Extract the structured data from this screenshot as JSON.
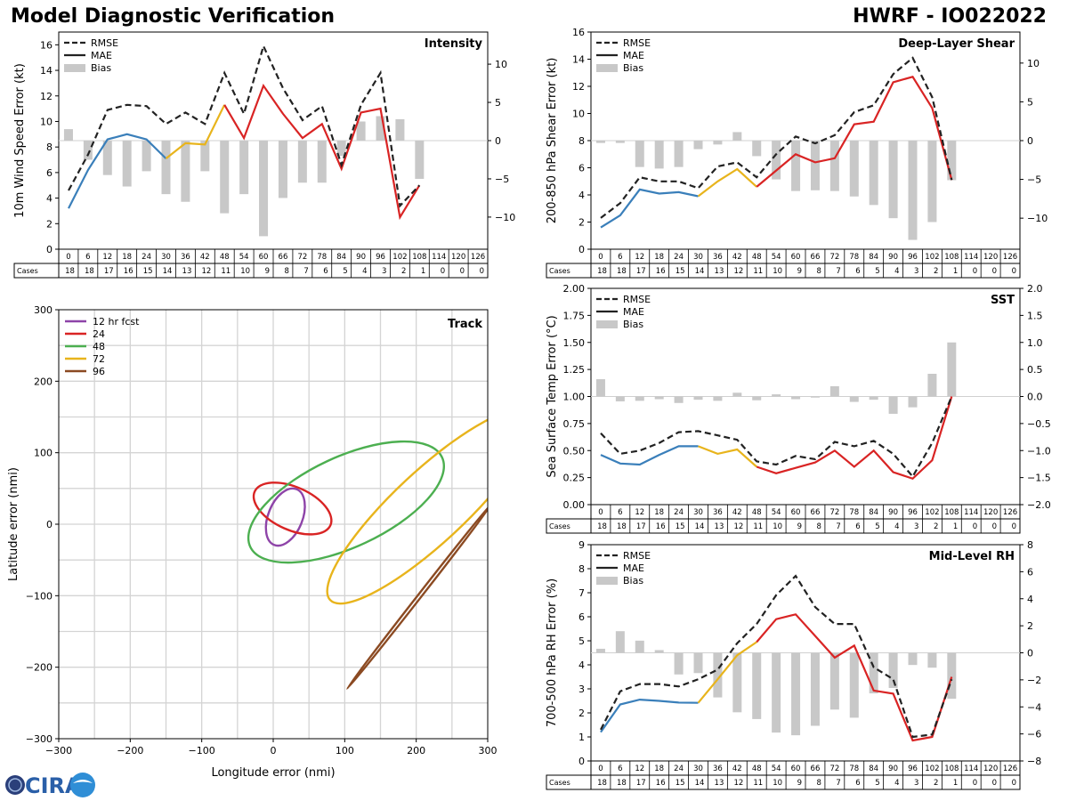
{
  "header": {
    "title": "Model Diagnostic Verification",
    "model_storm": "HWRF - IO022022"
  },
  "logo": {
    "text": "CIRA"
  },
  "colors": {
    "rmse": "#222222",
    "early": "#3a7fba",
    "mid": "#e8b41c",
    "late": "#d92424",
    "bias": "#c8c8c8"
  },
  "table": {
    "hours": [
      "0",
      "6",
      "12",
      "18",
      "24",
      "30",
      "36",
      "42",
      "48",
      "54",
      "60",
      "66",
      "72",
      "78",
      "84",
      "90",
      "96",
      "102",
      "108",
      "114",
      "120",
      "126"
    ],
    "cases_label": "Cases",
    "cases": [
      "18",
      "18",
      "17",
      "16",
      "15",
      "14",
      "13",
      "12",
      "11",
      "10",
      "9",
      "8",
      "7",
      "6",
      "5",
      "4",
      "3",
      "2",
      "1",
      "0",
      "0",
      "0"
    ]
  },
  "chart_data": [
    {
      "id": "intensity",
      "type": "line",
      "title": "Intensity",
      "ylabel": "10m Wind Speed Error (kt)",
      "ylim": [
        0,
        17
      ],
      "yticks": [
        0,
        2,
        4,
        6,
        8,
        10,
        12,
        14,
        16
      ],
      "y2lim": [
        -14.2,
        14.2
      ],
      "y2ticks": [
        -10,
        -5,
        0,
        5,
        10
      ],
      "legend": [
        "RMSE",
        "MAE",
        "Bias"
      ],
      "rmse": [
        4.6,
        7.4,
        10.9,
        11.3,
        11.2,
        9.8,
        10.7,
        9.8,
        13.8,
        10.6,
        15.9,
        12.6,
        10.1,
        11.2,
        6.6,
        11.3,
        13.8,
        3.4,
        5.0
      ],
      "mae": [
        3.2,
        6.2,
        8.6,
        9.0,
        8.6,
        7.1,
        8.3,
        8.2,
        11.3,
        8.7,
        12.8,
        10.6,
        8.7,
        9.8,
        6.3,
        10.7,
        11.0,
        2.5,
        5.0
      ],
      "bias": [
        1.5,
        -2.5,
        -4.5,
        -6.0,
        -4.0,
        -7.0,
        -8.0,
        -4.0,
        -9.5,
        -7.0,
        -12.5,
        -7.5,
        -5.5,
        -5.5,
        -2.0,
        2.5,
        3.2,
        2.8,
        -5.0
      ]
    },
    {
      "id": "shear",
      "type": "line",
      "title": "Deep-Layer Shear",
      "ylabel": "200-850 hPa Shear Error (kt)",
      "ylim": [
        0,
        16
      ],
      "yticks": [
        0,
        2,
        4,
        6,
        8,
        10,
        12,
        14,
        16
      ],
      "y2lim": [
        -14,
        14
      ],
      "y2ticks": [
        -10,
        -5,
        0,
        5,
        10
      ],
      "legend": [
        "RMSE",
        "MAE",
        "Bias"
      ],
      "rmse": [
        2.3,
        3.4,
        5.3,
        5.0,
        5.0,
        4.5,
        6.1,
        6.4,
        5.3,
        7.0,
        8.3,
        7.8,
        8.4,
        10.1,
        10.6,
        12.9,
        14.1,
        11.2,
        5.1
      ],
      "mae": [
        1.6,
        2.5,
        4.4,
        4.1,
        4.2,
        3.9,
        5.0,
        5.9,
        4.6,
        5.8,
        7.0,
        6.4,
        6.7,
        9.2,
        9.4,
        12.3,
        12.7,
        10.4,
        5.1
      ],
      "bias": [
        -0.3,
        -0.3,
        -3.4,
        -3.6,
        -3.4,
        -1.1,
        -0.5,
        1.1,
        -2.0,
        -5.0,
        -6.5,
        -6.4,
        -6.5,
        -7.2,
        -8.3,
        -10.0,
        -12.8,
        -10.5,
        -5.1
      ]
    },
    {
      "id": "sst",
      "type": "line",
      "title": "SST",
      "ylabel": "Sea Surface Temp Error (°C)",
      "ylim": [
        0,
        2
      ],
      "yticks": [
        "0.00",
        "0.25",
        "0.50",
        "0.75",
        "1.00",
        "1.25",
        "1.50",
        "1.75",
        "2.00"
      ],
      "y2lim": [
        -2,
        2
      ],
      "y2ticks": [
        "−2.0",
        "−1.5",
        "−1.0",
        "−0.5",
        "0.0",
        "0.5",
        "1.0",
        "1.5",
        "2.0"
      ],
      "legend": [
        "RMSE",
        "MAE",
        "Bias"
      ],
      "rmse": [
        0.66,
        0.47,
        0.5,
        0.57,
        0.67,
        0.68,
        0.64,
        0.6,
        0.4,
        0.37,
        0.45,
        0.42,
        0.58,
        0.54,
        0.59,
        0.47,
        0.26,
        0.57,
        1.0
      ],
      "mae": [
        0.46,
        0.38,
        0.37,
        0.46,
        0.54,
        0.54,
        0.47,
        0.51,
        0.35,
        0.29,
        0.34,
        0.39,
        0.5,
        0.35,
        0.5,
        0.3,
        0.24,
        0.41,
        1.0
      ],
      "bias": [
        0.32,
        -0.09,
        -0.08,
        -0.05,
        -0.12,
        -0.06,
        -0.08,
        0.07,
        -0.07,
        0.04,
        -0.05,
        -0.02,
        0.19,
        -0.1,
        -0.06,
        -0.32,
        -0.2,
        0.42,
        1.0
      ]
    },
    {
      "id": "rh",
      "type": "line",
      "title": "Mid-Level RH",
      "ylabel": "700-500 hPa RH Error (%)",
      "ylim": [
        0,
        9
      ],
      "yticks": [
        0,
        1,
        2,
        3,
        4,
        5,
        6,
        7,
        8,
        9
      ],
      "y2lim": [
        -8,
        8
      ],
      "y2ticks": [
        -8,
        -6,
        -4,
        -2,
        0,
        2,
        4,
        6,
        8
      ],
      "legend": [
        "RMSE",
        "MAE",
        "Bias"
      ],
      "rmse": [
        1.3,
        2.9,
        3.2,
        3.2,
        3.1,
        3.4,
        3.8,
        4.9,
        5.7,
        6.9,
        7.7,
        6.4,
        5.7,
        5.7,
        3.9,
        3.4,
        1.0,
        1.1,
        3.4
      ],
      "mae": [
        1.2,
        2.35,
        2.55,
        2.5,
        2.43,
        2.42,
        3.4,
        4.4,
        4.95,
        5.9,
        6.1,
        5.2,
        4.3,
        4.8,
        2.93,
        2.8,
        0.85,
        1.0,
        3.5
      ],
      "bias": [
        0.3,
        1.6,
        0.9,
        0.2,
        -1.6,
        -1.5,
        -3.3,
        -4.4,
        -4.9,
        -5.9,
        -6.1,
        -5.4,
        -4.2,
        -4.8,
        -3.0,
        -2.6,
        -0.9,
        -1.1,
        -3.4
      ]
    },
    {
      "id": "track",
      "type": "ellipse",
      "title": "Track",
      "xlabel": "Longitude error (nmi)",
      "ylabel": "Latitude error (nmi)",
      "xlim": [
        -300,
        300
      ],
      "ylim": [
        -300,
        300
      ],
      "ticks": [
        -300,
        -200,
        -100,
        0,
        100,
        200,
        300
      ],
      "legend": [
        {
          "label": "12 hr fcst",
          "color": "#8e44a8"
        },
        {
          "label": "24",
          "color": "#d92424"
        },
        {
          "label": "48",
          "color": "#4caf50"
        },
        {
          "label": "72",
          "color": "#e8b41c"
        },
        {
          "label": "96",
          "color": "#8b4a22"
        }
      ],
      "ellipses": [
        {
          "label": "12 hr fcst",
          "color": "#8e44a8",
          "cx": 17,
          "cy": 10,
          "a": 42,
          "b": 24,
          "angle_deg": 68
        },
        {
          "label": "24",
          "color": "#d92424",
          "cx": 27,
          "cy": 22,
          "a": 58,
          "b": 30,
          "angle_deg": -24
        },
        {
          "label": "48",
          "color": "#4caf50",
          "cx": 102,
          "cy": 31,
          "a": 148,
          "b": 63,
          "angle_deg": 25
        },
        {
          "label": "72",
          "color": "#e8b41c",
          "cx": 220,
          "cy": 25,
          "a": 192,
          "b": 50,
          "angle_deg": 43
        },
        {
          "label": "96",
          "color": "#8b4a22",
          "cx": 205,
          "cy": -100,
          "a": 165,
          "b": 2.5,
          "angle_deg": 52
        }
      ]
    }
  ]
}
